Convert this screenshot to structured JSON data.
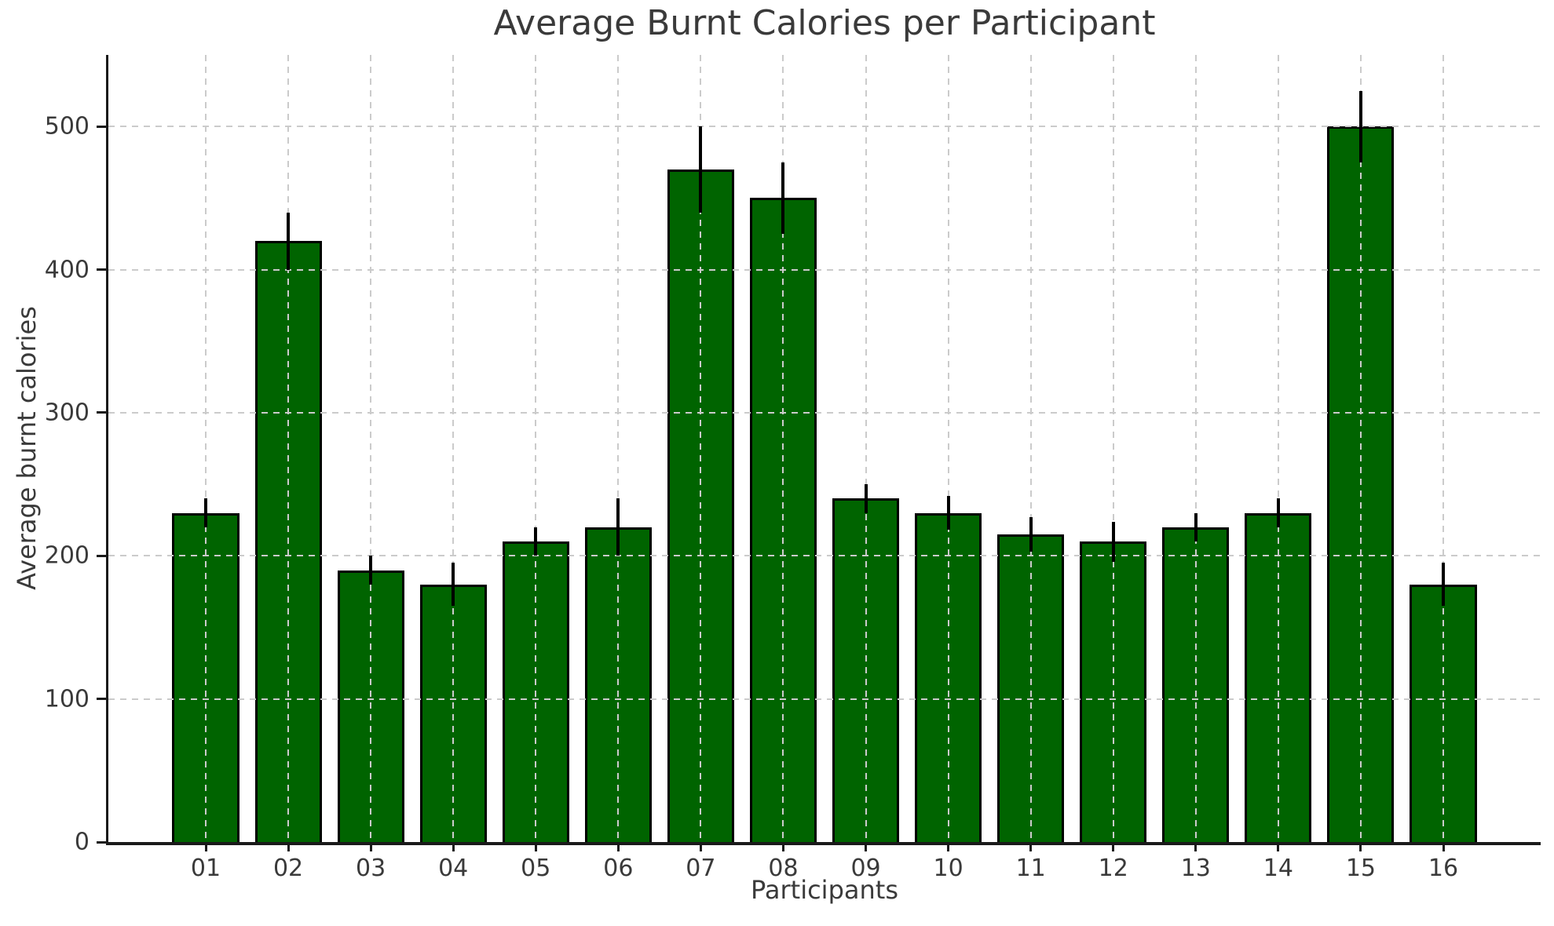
{
  "title": "Average Burnt Calories per Participant",
  "colors": {
    "bar_fill": "#006400",
    "bar_edge": "#000000",
    "error_bar": "#000000",
    "grid": "#cbcbcb",
    "spine": "#1a1a1a",
    "text": "#3a3a3a",
    "background": "#ffffff"
  },
  "chart_data": {
    "type": "bar",
    "title": "Average Burnt Calories per Participant",
    "xlabel": "Participants",
    "ylabel": "Average burnt calories",
    "categories": [
      "01",
      "02",
      "03",
      "04",
      "05",
      "06",
      "07",
      "08",
      "09",
      "10",
      "11",
      "12",
      "13",
      "14",
      "15",
      "16"
    ],
    "values": [
      230,
      420,
      190,
      180,
      210,
      220,
      470,
      450,
      240,
      230,
      215,
      210,
      220,
      230,
      500,
      180
    ],
    "errors": [
      10,
      20,
      10,
      15,
      10,
      20,
      30,
      25,
      10,
      12,
      12,
      14,
      10,
      10,
      25,
      15
    ],
    "yticks": [
      0,
      100,
      200,
      300,
      400,
      500
    ],
    "ylim": [
      0,
      550
    ],
    "bar_width_frac": 0.81,
    "grid": "dashed horizontal and vertical, drawn above bars",
    "error_caps": false,
    "legend": null
  }
}
